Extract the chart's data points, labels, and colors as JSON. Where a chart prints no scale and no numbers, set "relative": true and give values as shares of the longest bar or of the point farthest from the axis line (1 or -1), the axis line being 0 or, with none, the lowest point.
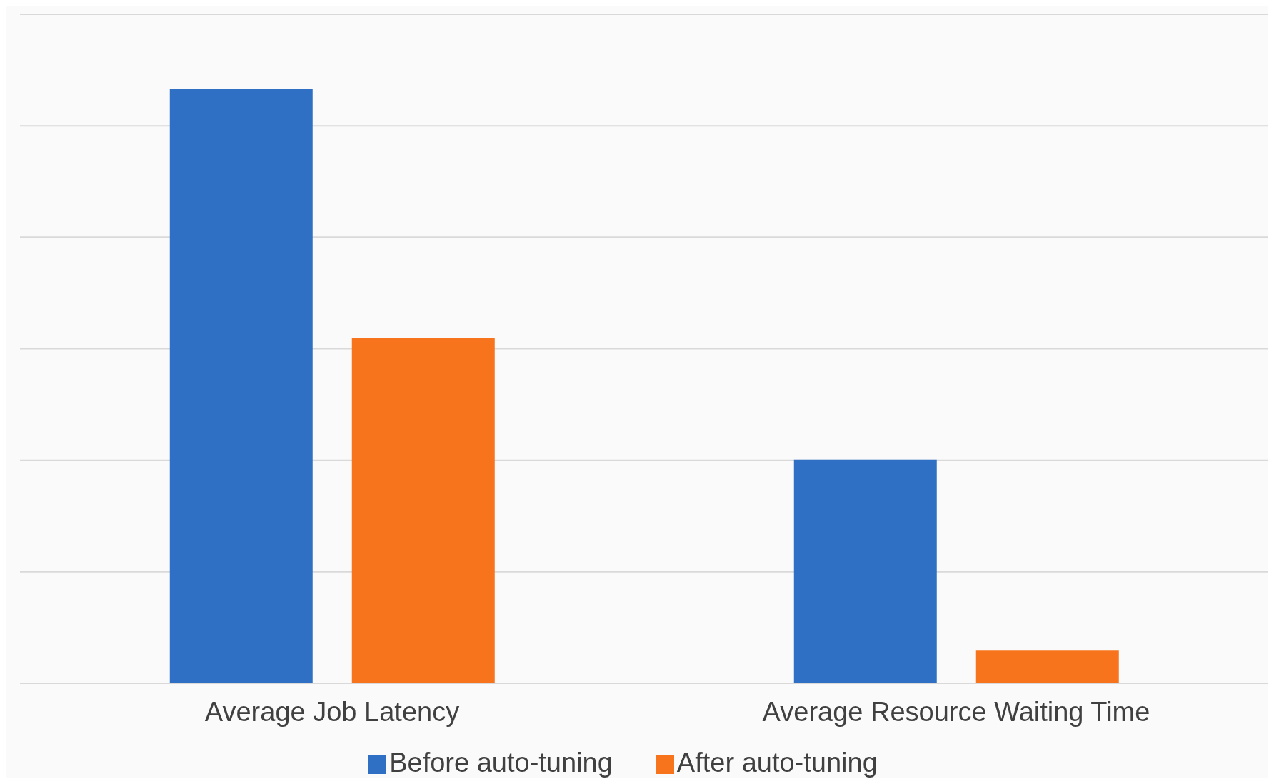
{
  "chart_data": {
    "type": "bar",
    "relative": true,
    "categories": [
      "Average Job Latency",
      "Average Resource Waiting Time"
    ],
    "series": [
      {
        "name": "Before auto-tuning",
        "color": "#3070c4",
        "values": [
          1,
          0.376
        ]
      },
      {
        "name": "After auto-tuning",
        "color": "#f7741c",
        "values": [
          0.581,
          0.055
        ]
      }
    ],
    "grid": "y",
    "legend": "bottom"
  }
}
